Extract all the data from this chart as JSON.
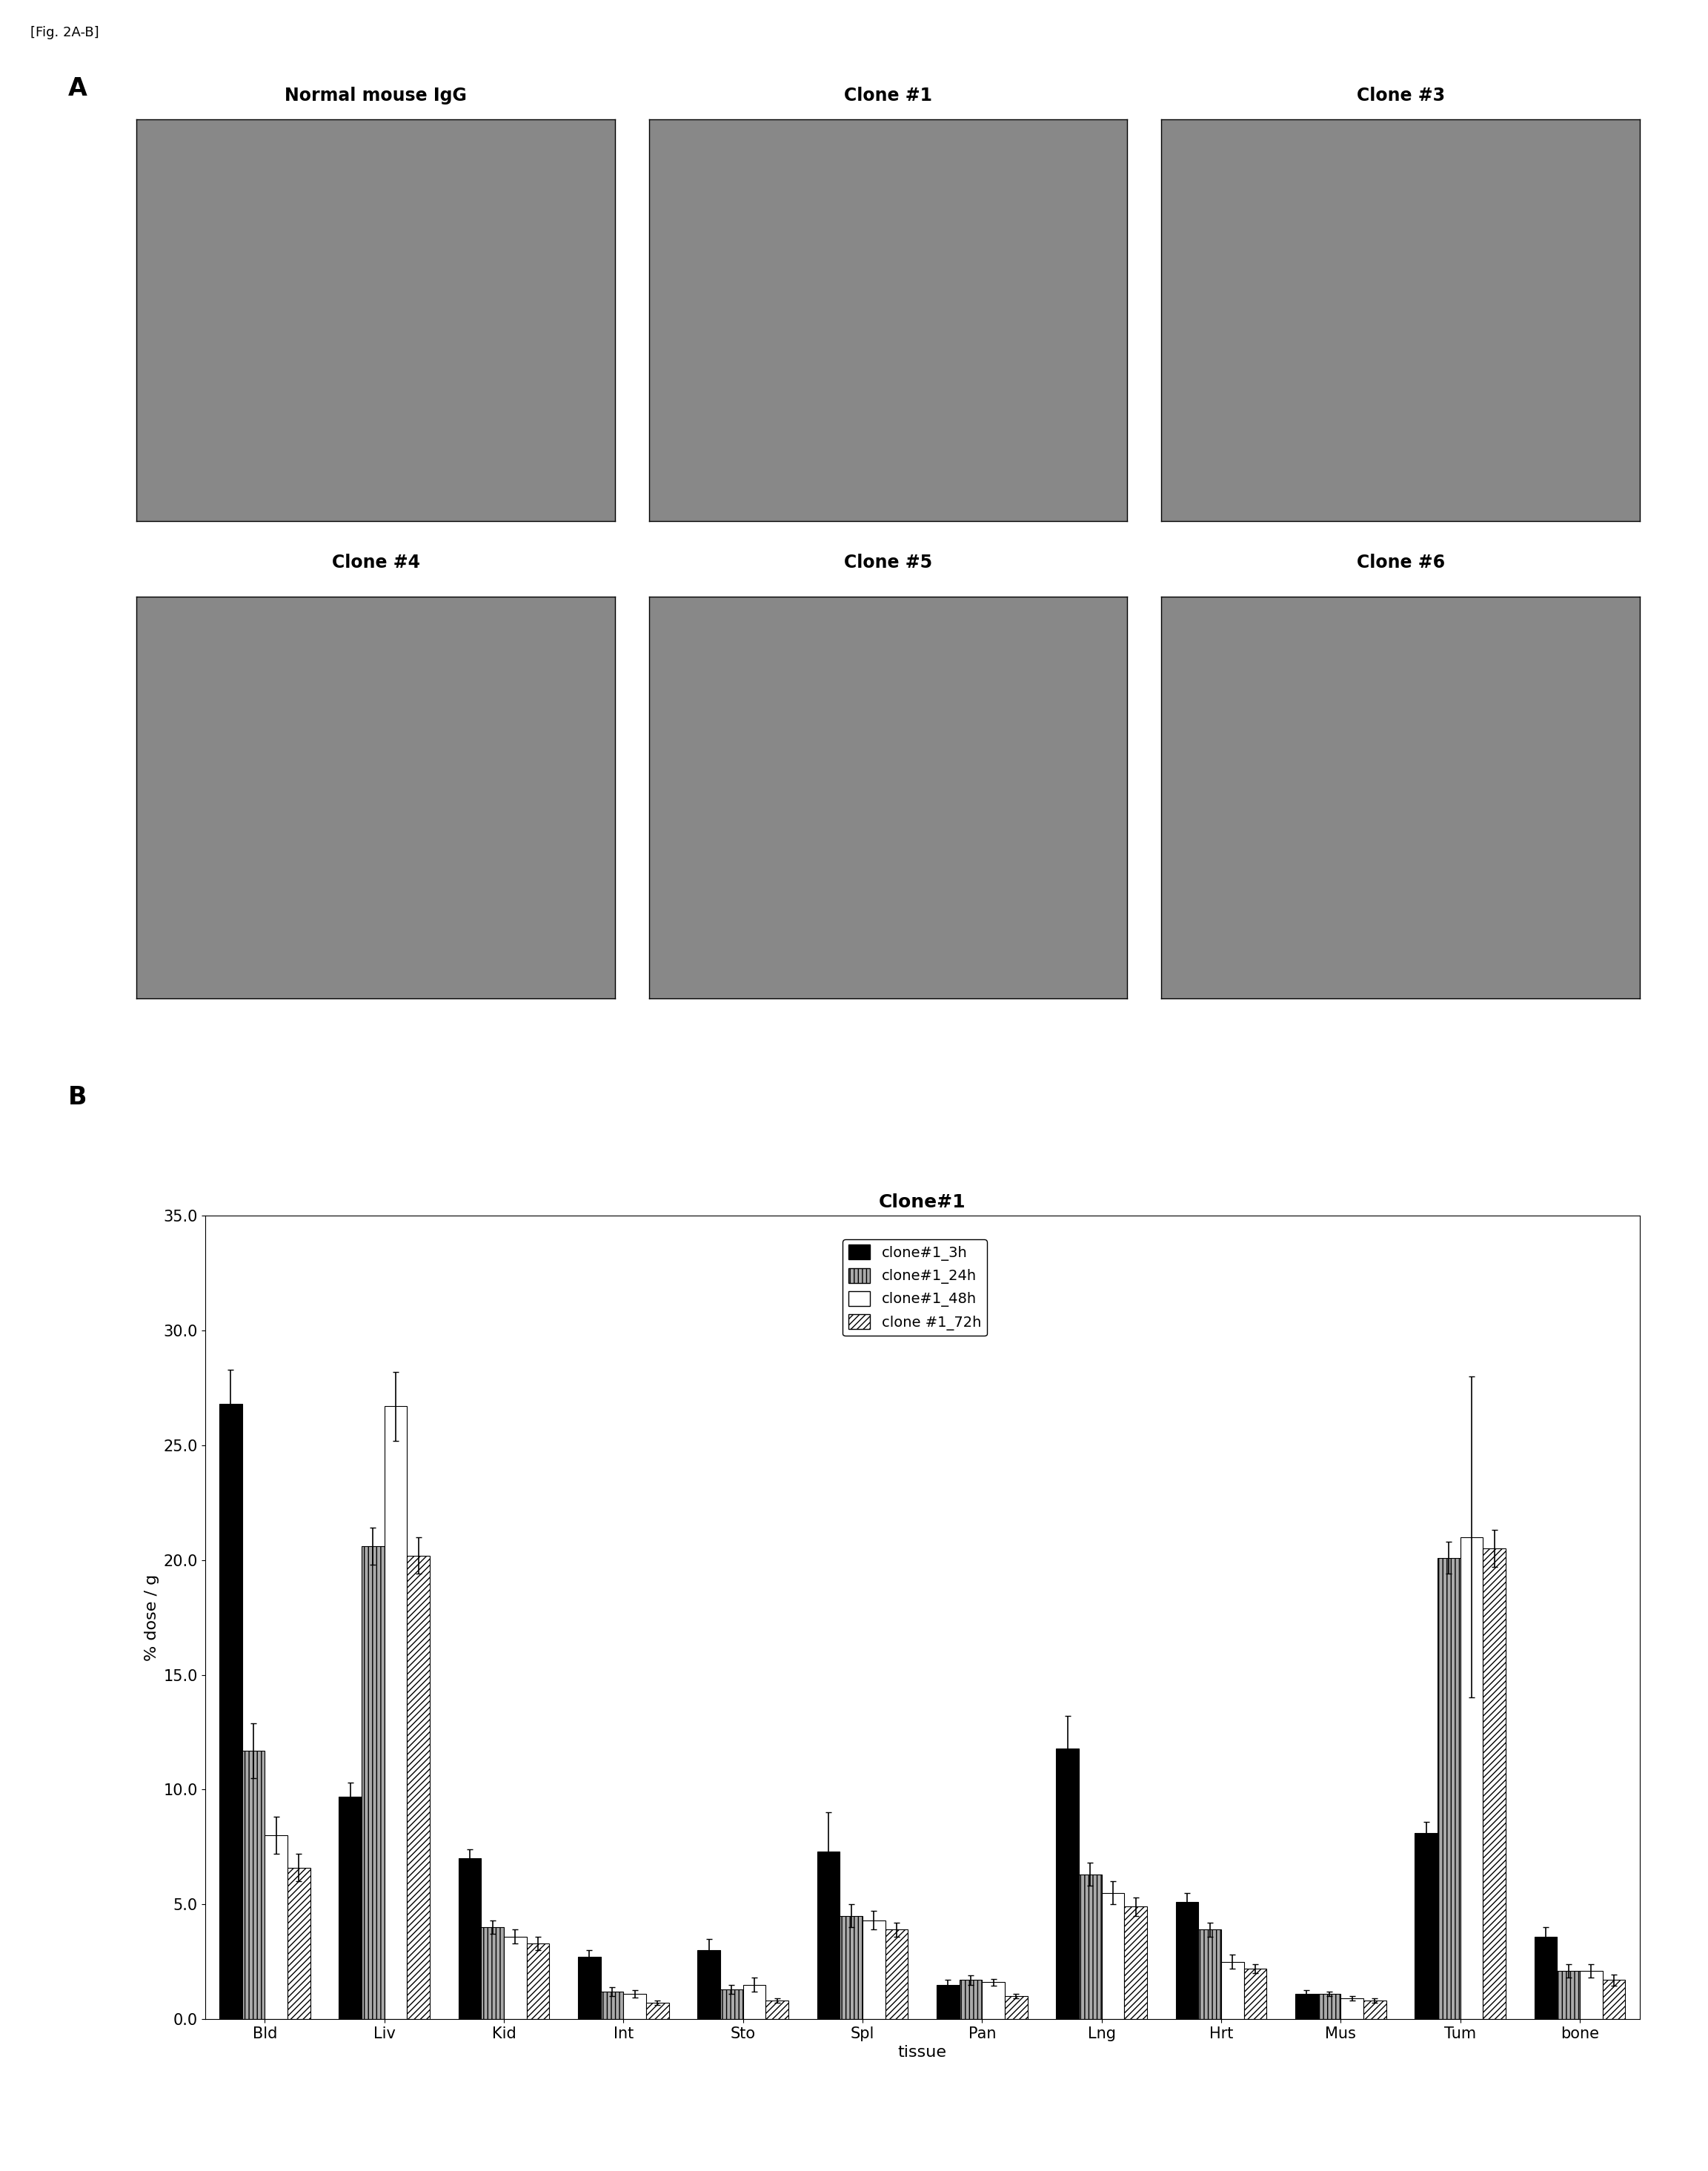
{
  "fig_label": "[Fig. 2A-B]",
  "panel_A_label": "A",
  "panel_B_label": "B",
  "panel_A_titles_row1": [
    "Normal mouse IgG",
    "Clone #1",
    "Clone #3"
  ],
  "panel_A_titles_row2": [
    "Clone #4",
    "Clone #5",
    "Clone #6"
  ],
  "chart_title": "Clone#1",
  "xlabel": "tissue",
  "ylabel": "% dose / g",
  "ylim": [
    0,
    35.0
  ],
  "yticks": [
    0.0,
    5.0,
    10.0,
    15.0,
    20.0,
    25.0,
    30.0,
    35.0
  ],
  "categories": [
    "Bld",
    "Liv",
    "Kid",
    "Int",
    "Sto",
    "Spl",
    "Pan",
    "Lng",
    "Hrt",
    "Mus",
    "Tum",
    "bone"
  ],
  "series": [
    {
      "label": "clone#1_3h",
      "color": "#000000",
      "hatch": "",
      "values": [
        26.8,
        9.7,
        7.0,
        2.7,
        3.0,
        7.3,
        1.5,
        11.8,
        5.1,
        1.1,
        8.1,
        3.6
      ],
      "errors": [
        1.5,
        0.6,
        0.4,
        0.3,
        0.5,
        1.7,
        0.2,
        1.4,
        0.4,
        0.15,
        0.5,
        0.4
      ]
    },
    {
      "label": "clone#1_24h",
      "color": "#aaaaaa",
      "hatch": "|||",
      "values": [
        11.7,
        20.6,
        4.0,
        1.2,
        1.3,
        4.5,
        1.7,
        6.3,
        3.9,
        1.1,
        20.1,
        2.1
      ],
      "errors": [
        1.2,
        0.8,
        0.3,
        0.2,
        0.2,
        0.5,
        0.2,
        0.5,
        0.3,
        0.1,
        0.7,
        0.3
      ]
    },
    {
      "label": "clone#1_48h",
      "color": "#ffffff",
      "hatch": "",
      "values": [
        8.0,
        26.7,
        3.6,
        1.1,
        1.5,
        4.3,
        1.6,
        5.5,
        2.5,
        0.9,
        21.0,
        2.1
      ],
      "errors": [
        0.8,
        1.5,
        0.3,
        0.15,
        0.3,
        0.4,
        0.15,
        0.5,
        0.3,
        0.1,
        7.0,
        0.3
      ]
    },
    {
      "label": "clone #1_72h",
      "color": "#ffffff",
      "hatch": "////",
      "values": [
        6.6,
        20.2,
        3.3,
        0.7,
        0.8,
        3.9,
        1.0,
        4.9,
        2.2,
        0.8,
        20.5,
        1.7
      ],
      "errors": [
        0.6,
        0.8,
        0.3,
        0.1,
        0.1,
        0.3,
        0.1,
        0.4,
        0.2,
        0.1,
        0.8,
        0.25
      ]
    }
  ],
  "background_color": "#ffffff",
  "title_fontsize": 18,
  "label_fontsize": 16,
  "tick_fontsize": 15,
  "legend_fontsize": 14,
  "panel_label_fontsize": 24,
  "img_title_fontsize": 17,
  "fig_label_fontsize": 13
}
